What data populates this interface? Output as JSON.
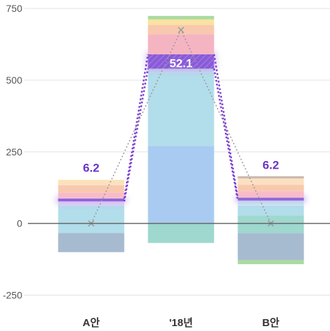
{
  "chart_data": {
    "type": "bar",
    "stacked": true,
    "categories": [
      "A안",
      "'18년",
      "B안"
    ],
    "ylim": [
      -290,
      760
    ],
    "y_ticks": [
      750,
      500,
      250,
      0,
      -250
    ],
    "grid": true,
    "segment_colors": [
      "#a7bbd0",
      "#9ed8cf",
      "#b2ddea",
      "#ccecf2",
      "#e1d8f7",
      "#9066db",
      "#f7bcc9",
      "#f8c9ae",
      "#fbe2a2",
      "#a9dba0",
      "#ccbbb0"
    ],
    "stacks": [
      {
        "category": "A안",
        "segments": [
          {
            "from": -100,
            "to": -33,
            "color": "#a7bbd0"
          },
          {
            "from": -33,
            "to": 0,
            "color": "#b2ddea"
          },
          {
            "from": 0,
            "to": 62,
            "color": "#b2ddea"
          },
          {
            "from": 62,
            "to": 77,
            "color": "#e1d8f7"
          },
          {
            "from": 77,
            "to": 87,
            "color": "#9066db"
          },
          {
            "from": 87,
            "to": 108,
            "color": "#f7bcc9"
          },
          {
            "from": 108,
            "to": 133,
            "color": "#f8c9ae"
          },
          {
            "from": 133,
            "to": 148,
            "color": "#fbe0c2"
          },
          {
            "from": 148,
            "to": 152,
            "color": "#fbe2a2"
          }
        ],
        "marker_y": 0,
        "label": "6.2",
        "label_y": 195
      },
      {
        "category": "'18년",
        "segments": [
          {
            "from": -68,
            "to": 0,
            "color": "#9ed8cf"
          },
          {
            "from": 0,
            "to": 270,
            "color": "#a9cbf1"
          },
          {
            "from": 270,
            "to": 525,
            "color": "#b2ddea"
          },
          {
            "from": 525,
            "to": 540,
            "color": "#c7d7ef"
          },
          {
            "from": 540,
            "to": 590,
            "color": "#9066db"
          },
          {
            "from": 590,
            "to": 660,
            "color": "#f5b4c2"
          },
          {
            "from": 660,
            "to": 692,
            "color": "#f8c9ae"
          },
          {
            "from": 692,
            "to": 712,
            "color": "#fbe2a2"
          },
          {
            "from": 712,
            "to": 724,
            "color": "#a9dba0"
          }
        ],
        "marker_y": 675,
        "label": "52.1",
        "label_y": 560
      },
      {
        "category": "B안",
        "segments": [
          {
            "from": -142,
            "to": -128,
            "color": "#a9dba0"
          },
          {
            "from": -128,
            "to": -33,
            "color": "#a7bbd0"
          },
          {
            "from": -33,
            "to": 28,
            "color": "#9ed8cf"
          },
          {
            "from": 28,
            "to": 62,
            "color": "#b2ddea"
          },
          {
            "from": 62,
            "to": 80,
            "color": "#ccecf2"
          },
          {
            "from": 80,
            "to": 90,
            "color": "#9066db"
          },
          {
            "from": 90,
            "to": 113,
            "color": "#f7bcc9"
          },
          {
            "from": 113,
            "to": 135,
            "color": "#f8c9ae"
          },
          {
            "from": 135,
            "to": 157,
            "color": "#fbe0c2"
          },
          {
            "from": 157,
            "to": 165,
            "color": "#ccbbb0"
          }
        ],
        "marker_y": 0,
        "label": "6.2",
        "label_y": 205
      }
    ],
    "purple_line_color": "#7b3fd0",
    "grey_line_color": "#999999",
    "zero_line_color": "#666666",
    "label_color": "#6a34c9",
    "highlight_label_color": "#ffffff"
  }
}
